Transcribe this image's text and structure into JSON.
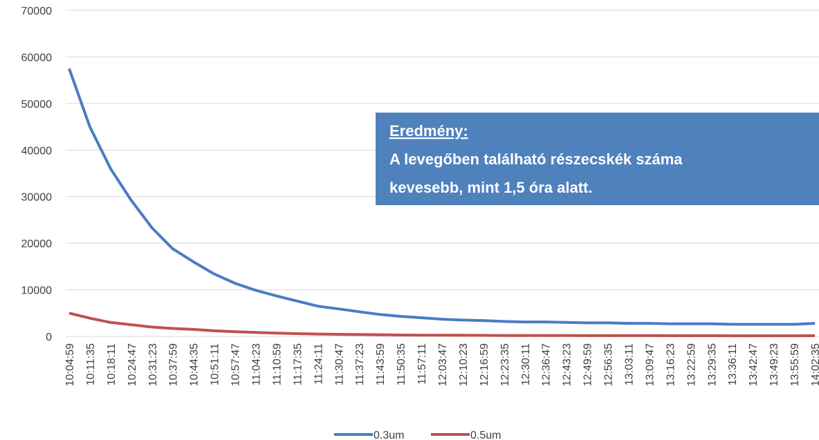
{
  "chart_data": {
    "type": "line",
    "categories": [
      "10:04:59",
      "10:11:35",
      "10:18:11",
      "10:24:47",
      "10:31:23",
      "10:37:59",
      "10:44:35",
      "10:51:11",
      "10:57:47",
      "11:04:23",
      "11:10:59",
      "11:17:35",
      "11:24:11",
      "11:30:47",
      "11:37:23",
      "11:43:59",
      "11:50:35",
      "11:57:11",
      "12:03:47",
      "12:10:23",
      "12:16:59",
      "12:23:35",
      "12:30:11",
      "12:36:47",
      "12:43:23",
      "12:49:59",
      "12:56:35",
      "13:03:11",
      "13:09:47",
      "13:16:23",
      "13:22:59",
      "13:29:35",
      "13:36:11",
      "13:42:47",
      "13:49:23",
      "13:55:59",
      "14:02:35"
    ],
    "series": [
      {
        "name": "0.3um",
        "color": "#4a7cc4",
        "values": [
          57500,
          45000,
          36000,
          29200,
          23300,
          18800,
          16000,
          13400,
          11400,
          9900,
          8700,
          7600,
          6500,
          5900,
          5300,
          4700,
          4300,
          4000,
          3700,
          3500,
          3400,
          3200,
          3100,
          3100,
          3000,
          2900,
          2900,
          2800,
          2800,
          2700,
          2700,
          2700,
          2600,
          2600,
          2600,
          2600,
          2800
        ]
      },
      {
        "name": "0.5um",
        "color": "#c0504d",
        "values": [
          5000,
          3900,
          3000,
          2500,
          2000,
          1700,
          1500,
          1200,
          1000,
          850,
          700,
          600,
          500,
          450,
          400,
          350,
          300,
          270,
          250,
          230,
          220,
          200,
          200,
          190,
          180,
          170,
          170,
          160,
          160,
          150,
          150,
          150,
          140,
          140,
          140,
          140,
          150
        ]
      }
    ],
    "ylim": [
      0,
      70000
    ],
    "yticks": [
      0,
      10000,
      20000,
      30000,
      40000,
      50000,
      60000,
      70000
    ],
    "grid": true,
    "legend": "bottom",
    "annotation": {
      "heading": "Eredmény:",
      "lines": [
        "A levegőben található részecskék száma",
        "kevesebb, mint 1,5 óra alatt."
      ]
    }
  }
}
